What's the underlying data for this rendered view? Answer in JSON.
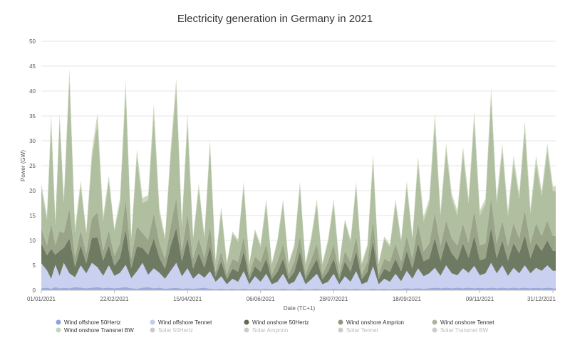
{
  "chart_data": {
    "type": "area",
    "title": "Electricity generation in Germany in 2021",
    "xlabel": "Date (TC+1)",
    "ylabel": "Power (GW)",
    "ylim": [
      0,
      50
    ],
    "yticks": [
      0,
      5,
      10,
      15,
      20,
      25,
      30,
      35,
      40,
      45,
      50
    ],
    "xticks": [
      {
        "day": 0,
        "label": "01/01/2021"
      },
      {
        "day": 52,
        "label": "22/02/2021"
      },
      {
        "day": 104,
        "label": "15/04/2021"
      },
      {
        "day": 156,
        "label": "06/06/2021"
      },
      {
        "day": 208,
        "label": "28/07/2021"
      },
      {
        "day": 260,
        "label": "18/09/2021"
      },
      {
        "day": 312,
        "label": "09/11/2021"
      },
      {
        "day": 364,
        "label": "31/12/2021"
      }
    ],
    "xlim": [
      0,
      366
    ],
    "grid": true,
    "legend_position": "bottom",
    "x_days": [
      0,
      4,
      7,
      10,
      13,
      16,
      20,
      24,
      28,
      32,
      36,
      40,
      44,
      48,
      52,
      56,
      60,
      64,
      68,
      72,
      76,
      80,
      84,
      88,
      92,
      96,
      100,
      104,
      108,
      112,
      116,
      120,
      124,
      128,
      132,
      136,
      140,
      144,
      148,
      152,
      156,
      160,
      164,
      168,
      172,
      176,
      180,
      184,
      188,
      192,
      196,
      200,
      204,
      208,
      212,
      216,
      220,
      224,
      228,
      232,
      236,
      240,
      244,
      248,
      252,
      256,
      260,
      264,
      268,
      272,
      276,
      280,
      284,
      288,
      292,
      296,
      300,
      304,
      308,
      312,
      316,
      320,
      324,
      328,
      332,
      336,
      340,
      344,
      348,
      352,
      356,
      360,
      364,
      366
    ],
    "series": [
      {
        "name": "Wind offshore 50Hertz",
        "color": "#8fa1dc",
        "visible": true,
        "values": [
          0.4,
          0.5,
          0.3,
          0.6,
          0.4,
          0.5,
          0.4,
          0.6,
          0.5,
          0.4,
          0.5,
          0.6,
          0.4,
          0.5,
          0.4,
          0.5,
          0.6,
          0.4,
          0.3,
          0.5,
          0.6,
          0.4,
          0.5,
          0.3,
          0.4,
          0.5,
          0.3,
          0.4,
          0.3,
          0.4,
          0.5,
          0.3,
          0.2,
          0.3,
          0.2,
          0.3,
          0.2,
          0.3,
          0.2,
          0.3,
          0.2,
          0.3,
          0.2,
          0.2,
          0.3,
          0.2,
          0.2,
          0.3,
          0.2,
          0.2,
          0.3,
          0.2,
          0.2,
          0.3,
          0.2,
          0.3,
          0.2,
          0.3,
          0.2,
          0.2,
          0.3,
          0.2,
          0.3,
          0.2,
          0.3,
          0.3,
          0.4,
          0.3,
          0.4,
          0.3,
          0.4,
          0.5,
          0.4,
          0.5,
          0.4,
          0.5,
          0.4,
          0.5,
          0.4,
          0.5,
          0.4,
          0.5,
          0.4,
          0.5,
          0.4,
          0.5,
          0.4,
          0.5,
          0.4,
          0.5,
          0.4,
          0.5,
          0.4,
          0.4
        ]
      },
      {
        "name": "Wind offshore Tennet",
        "color": "#c3cbee",
        "visible": true,
        "values": [
          5.0,
          3.5,
          2.0,
          4.5,
          2.5,
          5.0,
          3.0,
          2.0,
          4.5,
          3.0,
          5.0,
          4.0,
          2.5,
          4.5,
          2.5,
          3.0,
          4.5,
          2.0,
          3.5,
          5.0,
          2.5,
          4.0,
          3.0,
          2.0,
          3.5,
          5.0,
          2.5,
          4.0,
          2.0,
          3.0,
          2.0,
          3.5,
          1.5,
          2.5,
          1.0,
          2.0,
          1.5,
          3.5,
          1.0,
          2.5,
          1.5,
          3.0,
          1.0,
          1.5,
          3.0,
          1.0,
          1.5,
          3.5,
          1.0,
          2.0,
          3.0,
          1.0,
          1.5,
          3.0,
          1.0,
          2.5,
          1.5,
          3.5,
          1.0,
          1.5,
          4.5,
          1.0,
          2.0,
          1.5,
          3.0,
          1.5,
          3.5,
          2.0,
          4.0,
          2.5,
          3.0,
          4.0,
          2.5,
          4.5,
          3.0,
          2.5,
          4.0,
          3.0,
          4.5,
          2.5,
          3.0,
          5.0,
          3.0,
          4.5,
          2.5,
          4.0,
          3.0,
          4.5,
          3.0,
          4.0,
          3.5,
          4.5,
          3.5,
          3.5
        ]
      },
      {
        "name": "Wind onshore 50Hertz",
        "color": "#5f6b52",
        "visible": true,
        "values": [
          4,
          3,
          6,
          2,
          5,
          3,
          7,
          2,
          4,
          2,
          5,
          6,
          3,
          4,
          2,
          3,
          7,
          2,
          5,
          3,
          4,
          6,
          3,
          2,
          5,
          7,
          3,
          6,
          2,
          4,
          2,
          5,
          1,
          3,
          1,
          2,
          2,
          4,
          1,
          2,
          2,
          3,
          1,
          2,
          3,
          1,
          2,
          4,
          1,
          2,
          3,
          1,
          2,
          3,
          1,
          3,
          2,
          4,
          1,
          2,
          5,
          1,
          2,
          2,
          3,
          2,
          4,
          2,
          5,
          3,
          3,
          6,
          3,
          5,
          4,
          3,
          5,
          3,
          6,
          3,
          3,
          7,
          3,
          5,
          3,
          5,
          4,
          6,
          3,
          5,
          4,
          5,
          4,
          4
        ]
      },
      {
        "name": "Wind onshore Amprion",
        "color": "#8e9a7c",
        "visible": true,
        "values": [
          3,
          2,
          5,
          2,
          4,
          3,
          6,
          2,
          3,
          2,
          4,
          5,
          2,
          3,
          2,
          3,
          6,
          2,
          4,
          3,
          3,
          5,
          3,
          2,
          4,
          6,
          2,
          5,
          2,
          3,
          2,
          4,
          1,
          2,
          1,
          2,
          2,
          3,
          1,
          2,
          2,
          3,
          1,
          2,
          3,
          1,
          2,
          3,
          1,
          2,
          3,
          1,
          2,
          3,
          1,
          2,
          2,
          3,
          1,
          2,
          4,
          1,
          2,
          2,
          3,
          2,
          3,
          2,
          4,
          2,
          3,
          5,
          3,
          4,
          3,
          3,
          4,
          3,
          5,
          3,
          3,
          6,
          3,
          4,
          3,
          4,
          3,
          5,
          3,
          4,
          3,
          4,
          3,
          3
        ]
      },
      {
        "name": "Wind onshore Tennet",
        "color": "#a9b897",
        "visible": true,
        "values": [
          8,
          5,
          20,
          4,
          22,
          6,
          26,
          5,
          9,
          4,
          12,
          18,
          6,
          10,
          5,
          8,
          22,
          4,
          14,
          6,
          8,
          20,
          6,
          4,
          14,
          22,
          5,
          18,
          4,
          10,
          4,
          16,
          2,
          8,
          2,
          5,
          4,
          10,
          2,
          5,
          3,
          8,
          2,
          4,
          8,
          2,
          3,
          10,
          2,
          4,
          8,
          2,
          4,
          8,
          2,
          6,
          4,
          10,
          2,
          3,
          12,
          2,
          4,
          3,
          8,
          4,
          10,
          4,
          12,
          6,
          8,
          18,
          6,
          14,
          8,
          6,
          14,
          8,
          18,
          6,
          8,
          20,
          8,
          14,
          6,
          12,
          8,
          16,
          6,
          12,
          8,
          14,
          9,
          9
        ]
      },
      {
        "name": "Wind onshore Transnet BW",
        "color": "#c6d4b6",
        "visible": true,
        "values": [
          1,
          1,
          2,
          1,
          1.5,
          1,
          2,
          1,
          1,
          0.5,
          1.5,
          2,
          1,
          1,
          0.5,
          1,
          2,
          0.5,
          1.5,
          1,
          1,
          2,
          1,
          0.5,
          1.5,
          2,
          1,
          2,
          0.5,
          1,
          0.5,
          1.5,
          0.5,
          1,
          0.5,
          0.5,
          0.5,
          1,
          0.3,
          0.5,
          0.5,
          1,
          0.3,
          0.5,
          1,
          0.3,
          0.5,
          1,
          0.3,
          0.5,
          1,
          0.3,
          0.5,
          1,
          0.3,
          0.5,
          0.5,
          1,
          0.3,
          0.5,
          1.5,
          0.3,
          0.5,
          0.5,
          1,
          0.5,
          1,
          0.5,
          1.5,
          1,
          1,
          2,
          1,
          1.5,
          1,
          1,
          1.5,
          1,
          2,
          1,
          1,
          2,
          1,
          1.5,
          1,
          1.5,
          1,
          2,
          1,
          1.5,
          1,
          1.5,
          1,
          1
        ]
      },
      {
        "name": "Solar 50Hertz",
        "color": "#cccccc",
        "visible": false
      },
      {
        "name": "Solar Amprion",
        "color": "#cccccc",
        "visible": false
      },
      {
        "name": "Solar Tennet",
        "color": "#cccccc",
        "visible": false
      },
      {
        "name": "Solar Transnet BW",
        "color": "#cccccc",
        "visible": false
      }
    ]
  }
}
